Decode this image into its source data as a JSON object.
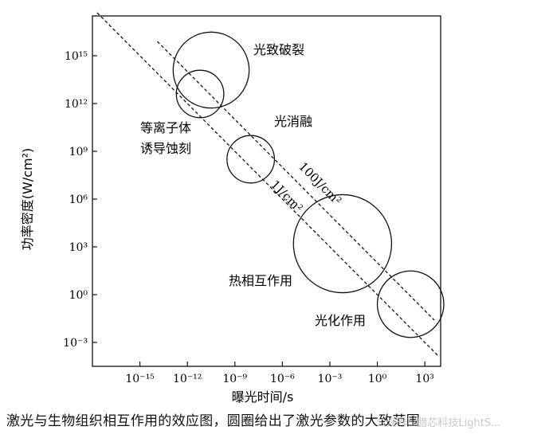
{
  "chart_data": {
    "type": "scatter",
    "title": "",
    "xlabel": "曝光时间/s",
    "ylabel": "功率密度(W/cm²)",
    "x_scale": "log",
    "y_scale": "log",
    "xlim_exp": [
      -18,
      4
    ],
    "ylim_exp": [
      -4.5,
      17.5
    ],
    "x_ticks": [
      {
        "exp": -15,
        "label": "10⁻¹⁵"
      },
      {
        "exp": -12,
        "label": "10⁻¹²"
      },
      {
        "exp": -9,
        "label": "10⁻⁹"
      },
      {
        "exp": -6,
        "label": "10⁻⁶"
      },
      {
        "exp": -3,
        "label": "10⁻³"
      },
      {
        "exp": 0,
        "label": "10⁰"
      },
      {
        "exp": 3,
        "label": "10³"
      }
    ],
    "y_ticks": [
      {
        "exp": -3,
        "label": "10⁻³"
      },
      {
        "exp": 0,
        "label": "10⁰"
      },
      {
        "exp": 3,
        "label": "10³"
      },
      {
        "exp": 6,
        "label": "10⁶"
      },
      {
        "exp": 9,
        "label": "10⁹"
      },
      {
        "exp": 12,
        "label": "10¹²"
      },
      {
        "exp": 15,
        "label": "10¹⁵"
      }
    ],
    "grid": false,
    "regions": [
      {
        "name": "光致破裂",
        "x_exp": -10.5,
        "y_exp": 14.1,
        "r_dec": 2.4
      },
      {
        "name": "等离子体诱导蚀刻",
        "x_exp": -11.2,
        "y_exp": 12.6,
        "r_dec": 1.5
      },
      {
        "name": "光消融",
        "x_exp": -8.0,
        "y_exp": 8.5,
        "r_dec": 1.5
      },
      {
        "name": "热相互作用",
        "x_exp": -2.2,
        "y_exp": 3.2,
        "r_dec": 3.1
      },
      {
        "name": "光化作用",
        "x_exp": 2.1,
        "y_exp": -0.6,
        "r_dec": 2.1
      }
    ],
    "lines": [
      {
        "label": "1J/cm²",
        "energy_exp": 0
      },
      {
        "label": "100J/cm²",
        "energy_exp": 2
      }
    ]
  },
  "caption": "激光与生物组织相互作用的效应图，圆圈给出了激光参数的大致范围",
  "watermark": "公众号 · 腊芯科技LightS..."
}
